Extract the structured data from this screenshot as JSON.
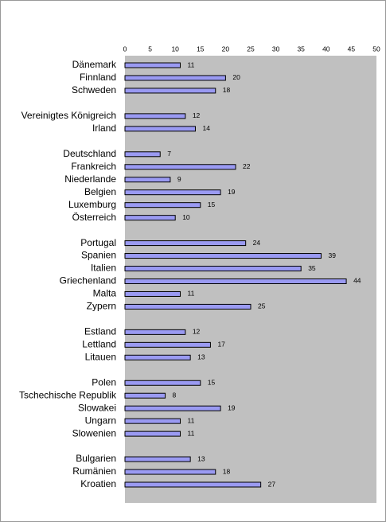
{
  "chart_data": {
    "type": "bar",
    "orientation": "horizontal",
    "color": "#9a9af2",
    "categories": [
      "Dänemark",
      "Finnland",
      "Schweden",
      null,
      "Vereinigtes Königreich",
      "Irland",
      null,
      "Deutschland",
      "Frankreich",
      "Niederlande",
      "Belgien",
      "Luxemburg",
      "Österreich",
      null,
      "Portugal",
      "Spanien",
      "Italien",
      "Griechenland",
      "Malta",
      "Zypern",
      null,
      "Estland",
      "Lettland",
      "Litauen",
      null,
      "Polen",
      "Tschechische Republik",
      "Slowakei",
      "Ungarn",
      "Slowenien",
      null,
      "Bulgarien",
      "Rumänien",
      "Kroatien"
    ],
    "values": [
      11,
      20,
      18,
      null,
      12,
      14,
      null,
      7,
      22,
      9,
      19,
      15,
      10,
      null,
      24,
      39,
      35,
      44,
      11,
      25,
      null,
      12,
      17,
      13,
      null,
      15,
      8,
      19,
      11,
      11,
      null,
      13,
      18,
      27
    ],
    "xlim": [
      0,
      50
    ],
    "xticks": [
      0,
      5,
      10,
      15,
      20,
      25,
      30,
      35,
      40,
      45,
      50
    ],
    "grid": false
  }
}
